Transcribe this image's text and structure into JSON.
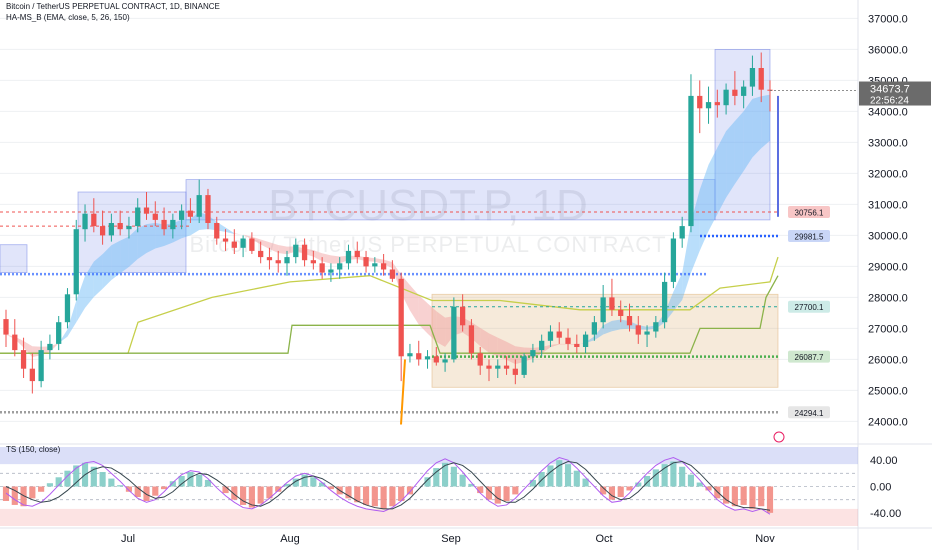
{
  "header": {
    "symbol_line": "Bitcoin / TetherUS PERPETUAL CONTRACT, 1D, BINANCE",
    "indicator_line": "HA-MS_B (EMA, close, 5, 26, 150)",
    "osc_line": "TS (150, close)"
  },
  "watermark": {
    "ticker": "BTCUSDT.P, 1D",
    "name": "Bitcoin / TetherUS PERPETUAL CONTRACT"
  },
  "price_badge": {
    "price": "34673.7",
    "countdown": "22:56:24"
  },
  "level_labels": [
    "30756.1",
    "29981.5",
    "27700.1",
    "26087.7",
    "24294.1"
  ],
  "colors": {
    "bull": "#26a69a",
    "bear": "#ef5350",
    "blue_zone": "#5b6ee1",
    "tan_zone": "#e0b27a",
    "blue_level": "#2962ff",
    "green_level": "#4caf50",
    "gray_level": "#9e9e9e",
    "olive_line": "#8bc34a",
    "orange_spike": "#ff9800"
  },
  "chart_data": {
    "type": "candlestick",
    "y_axis": {
      "ticks": [
        "37000.0",
        "36000.0",
        "35000.0",
        "34000.0",
        "33000.0",
        "32000.0",
        "31000.0",
        "30000.0",
        "29000.0",
        "28000.0",
        "27000.0",
        "26000.0",
        "25000.0",
        "24000.0"
      ],
      "ylim": [
        23400,
        37400
      ]
    },
    "x_axis": {
      "ticks": [
        "Jul",
        "Aug",
        "Sep",
        "Oct",
        "Nov"
      ]
    },
    "candles_ohlc": [
      [
        27300,
        27600,
        26400,
        26800
      ],
      [
        26800,
        27300,
        26100,
        26300
      ],
      [
        26300,
        26700,
        25400,
        25700
      ],
      [
        25700,
        26200,
        24900,
        25300
      ],
      [
        25300,
        26600,
        25100,
        26300
      ],
      [
        26300,
        26800,
        26000,
        26500
      ],
      [
        26500,
        27400,
        26300,
        27200
      ],
      [
        27200,
        28300,
        27000,
        28100
      ],
      [
        28100,
        30500,
        27900,
        30200
      ],
      [
        30200,
        31000,
        29800,
        30700
      ],
      [
        30700,
        31200,
        30100,
        30300
      ],
      [
        30300,
        30800,
        29700,
        30000
      ],
      [
        30000,
        30700,
        29800,
        30400
      ],
      [
        30400,
        30800,
        30000,
        30200
      ],
      [
        30200,
        30600,
        29900,
        30300
      ],
      [
        30300,
        31200,
        30100,
        30900
      ],
      [
        30900,
        31400,
        30500,
        30700
      ],
      [
        30700,
        31100,
        30300,
        30500
      ],
      [
        30500,
        30900,
        30000,
        30200
      ],
      [
        30200,
        30700,
        29900,
        30500
      ],
      [
        30500,
        31000,
        30200,
        30800
      ],
      [
        30800,
        31200,
        30400,
        30600
      ],
      [
        30600,
        31800,
        30400,
        31300
      ],
      [
        31300,
        31500,
        30200,
        30400
      ],
      [
        30400,
        30600,
        29700,
        29900
      ],
      [
        29900,
        30200,
        29500,
        29800
      ],
      [
        29800,
        30200,
        29400,
        29600
      ],
      [
        29600,
        30000,
        29300,
        29900
      ],
      [
        29900,
        30100,
        29400,
        29500
      ],
      [
        29500,
        29800,
        29100,
        29300
      ],
      [
        29300,
        29600,
        28900,
        29200
      ],
      [
        29200,
        29500,
        28800,
        29100
      ],
      [
        29100,
        29500,
        28700,
        29300
      ],
      [
        29300,
        29900,
        29100,
        29700
      ],
      [
        29700,
        29900,
        29000,
        29200
      ],
      [
        29200,
        29500,
        28900,
        29100
      ],
      [
        29100,
        29300,
        28600,
        28800
      ],
      [
        28800,
        29100,
        28500,
        28900
      ],
      [
        28900,
        29300,
        28600,
        29100
      ],
      [
        29100,
        29700,
        28900,
        29500
      ],
      [
        29500,
        29800,
        29100,
        29300
      ],
      [
        29300,
        29500,
        28800,
        29000
      ],
      [
        29000,
        29300,
        28800,
        29100
      ],
      [
        29100,
        29400,
        28700,
        28900
      ],
      [
        28900,
        29200,
        28500,
        28600
      ],
      [
        28600,
        28800,
        25300,
        26100
      ],
      [
        26100,
        26500,
        25900,
        26200
      ],
      [
        26200,
        26600,
        25800,
        26000
      ],
      [
        26000,
        26300,
        25700,
        26100
      ],
      [
        26100,
        26400,
        25800,
        25900
      ],
      [
        25900,
        26200,
        25600,
        26000
      ],
      [
        26000,
        28000,
        25900,
        27700
      ],
      [
        27700,
        28100,
        26900,
        27100
      ],
      [
        27100,
        27300,
        26000,
        26200
      ],
      [
        26200,
        26400,
        25500,
        25800
      ],
      [
        25800,
        26000,
        25300,
        25700
      ],
      [
        25700,
        26000,
        25400,
        25800
      ],
      [
        25800,
        26100,
        25500,
        25700
      ],
      [
        25700,
        26000,
        25200,
        25500
      ],
      [
        25500,
        26200,
        25400,
        26100
      ],
      [
        26100,
        26500,
        25900,
        26300
      ],
      [
        26300,
        26800,
        26100,
        26600
      ],
      [
        26600,
        27100,
        26400,
        26900
      ],
      [
        26900,
        27200,
        26500,
        26700
      ],
      [
        26700,
        27000,
        26300,
        26500
      ],
      [
        26500,
        26800,
        26200,
        26400
      ],
      [
        26400,
        26900,
        26200,
        26800
      ],
      [
        26800,
        27400,
        26600,
        27200
      ],
      [
        27200,
        28400,
        27000,
        28000
      ],
      [
        28000,
        28600,
        27400,
        27600
      ],
      [
        27600,
        27900,
        27200,
        27400
      ],
      [
        27400,
        27800,
        26900,
        27100
      ],
      [
        27100,
        27400,
        26500,
        26800
      ],
      [
        26800,
        27100,
        26400,
        26900
      ],
      [
        26900,
        27400,
        26700,
        27200
      ],
      [
        27200,
        28800,
        27000,
        28500
      ],
      [
        28500,
        30100,
        28300,
        29900
      ],
      [
        29900,
        30600,
        29600,
        30300
      ],
      [
        30300,
        35200,
        30100,
        34500
      ],
      [
        34500,
        35000,
        33300,
        34100
      ],
      [
        34100,
        34800,
        33600,
        34300
      ],
      [
        34300,
        34700,
        33800,
        34200
      ],
      [
        34200,
        34900,
        33900,
        34700
      ],
      [
        34700,
        35300,
        34200,
        34500
      ],
      [
        34500,
        35000,
        34100,
        34800
      ],
      [
        34800,
        35800,
        34500,
        35400
      ],
      [
        35400,
        35900,
        34300,
        34700
      ],
      [
        34700,
        35000,
        34000,
        34673.7
      ]
    ],
    "levels": [
      {
        "label": "30756.1",
        "value": 30756.1
      },
      {
        "label": "29981.5",
        "value": 29981.5
      },
      {
        "label": "27700.1",
        "value": 27700.1
      },
      {
        "label": "26087.7",
        "value": 26087.7
      },
      {
        "label": "24294.1",
        "value": 24294.1
      }
    ],
    "oscillator": {
      "title": "TS (150, close)",
      "ticks": [
        "40.00",
        "0.00",
        "-40.00"
      ],
      "ylim": [
        -60,
        60
      ],
      "histogram": [
        -22,
        -28,
        -30,
        -18,
        -8,
        5,
        14,
        24,
        32,
        36,
        30,
        22,
        12,
        2,
        -8,
        -16,
        -22,
        -14,
        -4,
        8,
        16,
        22,
        18,
        10,
        0,
        -10,
        -20,
        -28,
        -32,
        -26,
        -18,
        -8,
        4,
        12,
        18,
        14,
        6,
        -4,
        -12,
        -18,
        -24,
        -28,
        -30,
        -34,
        -30,
        -22,
        -12,
        0,
        14,
        28,
        36,
        30,
        18,
        4,
        -10,
        -20,
        -26,
        -22,
        -12,
        0,
        10,
        22,
        32,
        40,
        34,
        24,
        12,
        0,
        -12,
        -20,
        -16,
        -6,
        6,
        16,
        26,
        34,
        38,
        30,
        18,
        6,
        -6,
        -18,
        -26,
        -30,
        -28,
        -34,
        -30,
        -40
      ],
      "fast_line": [
        -10,
        -20,
        -28,
        -30,
        -24,
        -12,
        2,
        16,
        28,
        36,
        38,
        32,
        20,
        8,
        -6,
        -18,
        -24,
        -20,
        -8,
        6,
        18,
        24,
        22,
        12,
        -2,
        -14,
        -24,
        -32,
        -34,
        -28,
        -18,
        -6,
        6,
        16,
        20,
        16,
        6,
        -6,
        -16,
        -24,
        -30,
        -34,
        -36,
        -38,
        -32,
        -22,
        -8,
        8,
        24,
        36,
        42,
        36,
        22,
        6,
        -10,
        -22,
        -30,
        -28,
        -18,
        -4,
        10,
        24,
        36,
        44,
        40,
        28,
        14,
        0,
        -14,
        -24,
        -22,
        -10,
        6,
        20,
        32,
        40,
        44,
        38,
        24,
        10,
        -6,
        -20,
        -30,
        -36,
        -34,
        -38,
        -34,
        -42
      ],
      "slow_line": [
        0,
        -6,
        -14,
        -20,
        -24,
        -22,
        -16,
        -6,
        6,
        18,
        26,
        30,
        28,
        20,
        10,
        -2,
        -12,
        -18,
        -16,
        -8,
        4,
        14,
        20,
        18,
        10,
        0,
        -12,
        -22,
        -28,
        -30,
        -24,
        -14,
        -2,
        8,
        14,
        16,
        12,
        4,
        -6,
        -14,
        -22,
        -28,
        -32,
        -34,
        -34,
        -28,
        -18,
        -4,
        10,
        22,
        32,
        36,
        32,
        22,
        8,
        -6,
        -18,
        -24,
        -24,
        -16,
        -4,
        10,
        22,
        32,
        38,
        36,
        26,
        12,
        -2,
        -14,
        -20,
        -18,
        -8,
        6,
        18,
        28,
        36,
        38,
        32,
        20,
        6,
        -8,
        -20,
        -28,
        -32,
        -32,
        -34,
        -36
      ]
    }
  }
}
